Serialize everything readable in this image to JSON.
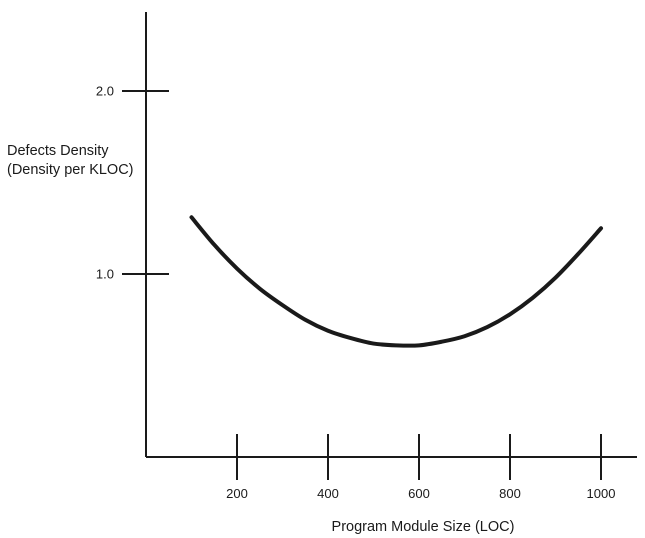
{
  "chart_data": {
    "type": "line",
    "title": "",
    "xlabel": "Program Module Size (LOC)",
    "ylabel_lines": [
      "Defects Density",
      "(Density per KLOC)"
    ],
    "x_ticks": [
      200,
      400,
      600,
      800,
      1000
    ],
    "x_tick_labels": [
      "200",
      "400",
      "600",
      "800",
      "1000"
    ],
    "y_ticks": [
      1.0,
      2.0
    ],
    "y_tick_labels": [
      "1.0",
      "2.0"
    ],
    "xlim": [
      0,
      1080
    ],
    "ylim": [
      0,
      2.4
    ],
    "grid": false,
    "series": [
      {
        "x": [
          100,
          150,
          200,
          250,
          300,
          350,
          400,
          450,
          500,
          550,
          600,
          650,
          700,
          750,
          800,
          850,
          900,
          950,
          1000
        ],
        "y": [
          1.31,
          1.16,
          1.03,
          0.92,
          0.83,
          0.75,
          0.69,
          0.65,
          0.62,
          0.61,
          0.61,
          0.63,
          0.66,
          0.71,
          0.78,
          0.87,
          0.98,
          1.11,
          1.25
        ]
      }
    ],
    "line_color": "#1a1a1a"
  }
}
